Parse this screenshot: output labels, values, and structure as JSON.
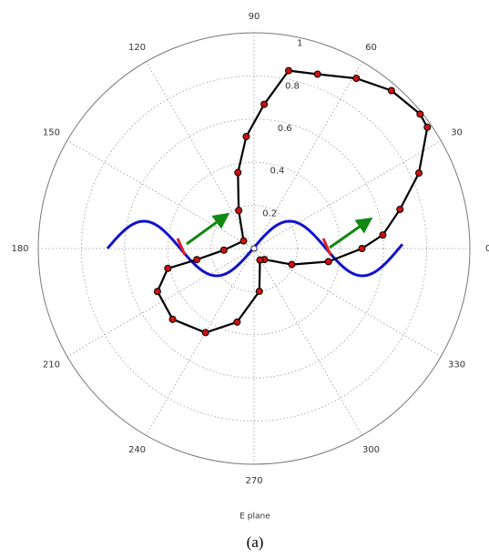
{
  "chart_data": {
    "type": "polar",
    "xlabel": "E plane",
    "caption": "(a)",
    "rlim": [
      0,
      1
    ],
    "rticks": [
      0.2,
      0.4,
      0.6,
      0.8,
      1
    ],
    "thetaticks": [
      0,
      30,
      60,
      90,
      120,
      150,
      180,
      210,
      240,
      270,
      300,
      330
    ],
    "grid": true,
    "series": [
      {
        "color": "#000000",
        "marker_color": "#cc1111",
        "theta": [
          313,
          337,
          350,
          0,
          6,
          15,
          24.6,
          35,
          39,
          49,
          59,
          70,
          79,
          86,
          94,
          102,
          112,
          144,
          183,
          191,
          193,
          204,
          221,
          240,
          257,
          277,
          297
        ],
        "values": [
          0.07,
          0.19,
          0.35,
          0.5,
          0.6,
          0.7,
          0.84,
          0.98,
          0.99,
          0.97,
          0.92,
          0.86,
          0.84,
          0.67,
          0.52,
          0.36,
          0.19,
          0.06,
          0.14,
          0.27,
          0.41,
          0.49,
          0.5,
          0.45,
          0.35,
          0.2,
          0.06
        ]
      }
    ]
  }
}
